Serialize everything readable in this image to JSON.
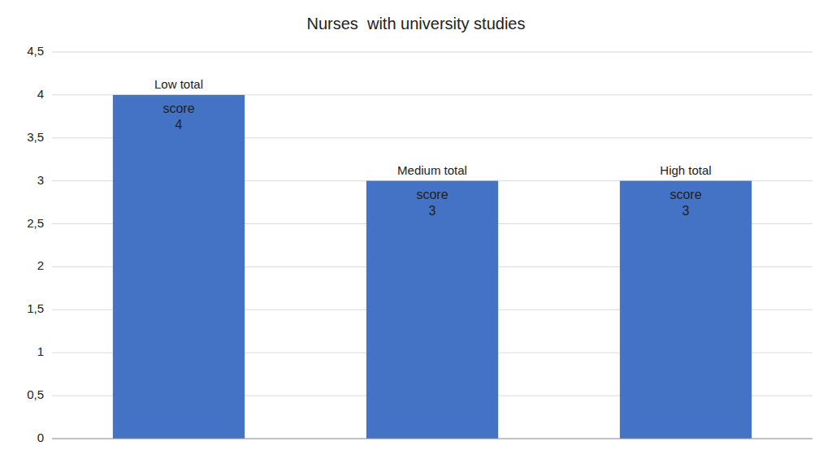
{
  "chart_data": {
    "type": "bar",
    "title": "Nurses  with university studies",
    "categories": [
      "Low total",
      "Medium total",
      "High total"
    ],
    "values": [
      4,
      3,
      3
    ],
    "value_labels": [
      "score\n4",
      "score\n3",
      "score\n3"
    ],
    "data_labels": true,
    "color": "#4472C4",
    "ylim": [
      0,
      4.5
    ],
    "yticks": [
      0,
      {
        "value": 0.5,
        "label": "0,5"
      },
      1,
      {
        "value": 1.5,
        "label": "1,5"
      },
      2,
      {
        "value": 2.5,
        "label": "2,5"
      },
      3,
      {
        "value": 3.5,
        "label": "3,5"
      },
      4,
      {
        "value": 4.5,
        "label": "4,5"
      }
    ],
    "grid": true,
    "tick_labels": "y"
  }
}
